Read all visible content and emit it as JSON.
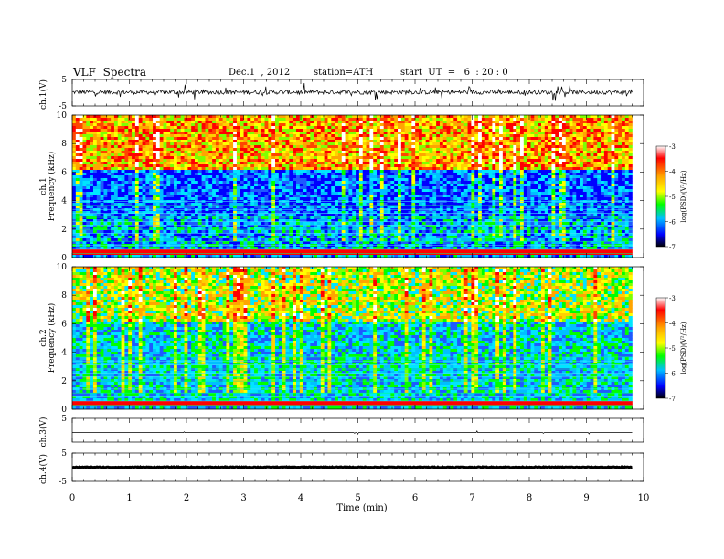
{
  "header": {
    "title": "VLF  Spectra",
    "date": "Dec.1  , 2012",
    "station": "station=ATH",
    "start": "start  UT  =   6  : 20 : 0"
  },
  "chart_data": [
    {
      "type": "line",
      "ylabel": "ch.1(V)",
      "ylim": [
        -5,
        5
      ],
      "yticks": [
        "5",
        "-5"
      ],
      "xlim": [
        0,
        10
      ],
      "description_level": 0.2
    },
    {
      "type": "heatmap",
      "ylabel": [
        "ch.1",
        "Frequency  (kHz)"
      ],
      "ylim": [
        0,
        10
      ],
      "yticks": [
        "10",
        "8",
        "6",
        "4",
        "2",
        "0"
      ],
      "xlim": [
        0,
        10
      ],
      "data_end": 9.8,
      "colorbar": {
        "label": "log(PSD)(V²/Hz)",
        "range": [
          -7,
          -3
        ],
        "ticks": [
          "-3",
          "-4",
          "-5",
          "-6",
          "-7"
        ],
        "colors": [
          "#ffffff",
          "#ff0000",
          "#ffa500",
          "#ffff00",
          "#00ff00",
          "#00bfff",
          "#0000ff",
          "#000000"
        ]
      }
    },
    {
      "type": "heatmap",
      "ylabel": [
        "ch.2",
        "Frequency  (kHz)"
      ],
      "ylim": [
        0,
        10
      ],
      "yticks": [
        "10",
        "8",
        "6",
        "4",
        "2",
        "0"
      ],
      "xlim": [
        0,
        10
      ],
      "data_end": 9.8,
      "colorbar": {
        "label": "log(PSD)(V²/Hz)",
        "range": [
          -7,
          -3
        ],
        "ticks": [
          "-3",
          "-4",
          "-5",
          "-6",
          "-7"
        ],
        "colors": [
          "#ffffff",
          "#ff0000",
          "#ffa500",
          "#ffff00",
          "#00ff00",
          "#00bfff",
          "#0000ff",
          "#000000"
        ]
      }
    },
    {
      "type": "line",
      "ylabel": "ch.3(V)",
      "ylim": [
        -5,
        5
      ],
      "yticks": [
        "5"
      ],
      "xlim": [
        0,
        10
      ],
      "data_end": 9.8,
      "description_level": -1.0
    },
    {
      "type": "line",
      "ylabel": "ch.4(V)",
      "ylim": [
        -5,
        5
      ],
      "yticks": [
        "5",
        "-5"
      ],
      "xlim": [
        0,
        10
      ],
      "data_end": 9.8,
      "description_level": 0
    }
  ],
  "xaxis": {
    "label": "Time  (min)",
    "ticks": [
      "0",
      "1",
      "2",
      "3",
      "4",
      "5",
      "6",
      "7",
      "8",
      "9",
      "10"
    ]
  }
}
